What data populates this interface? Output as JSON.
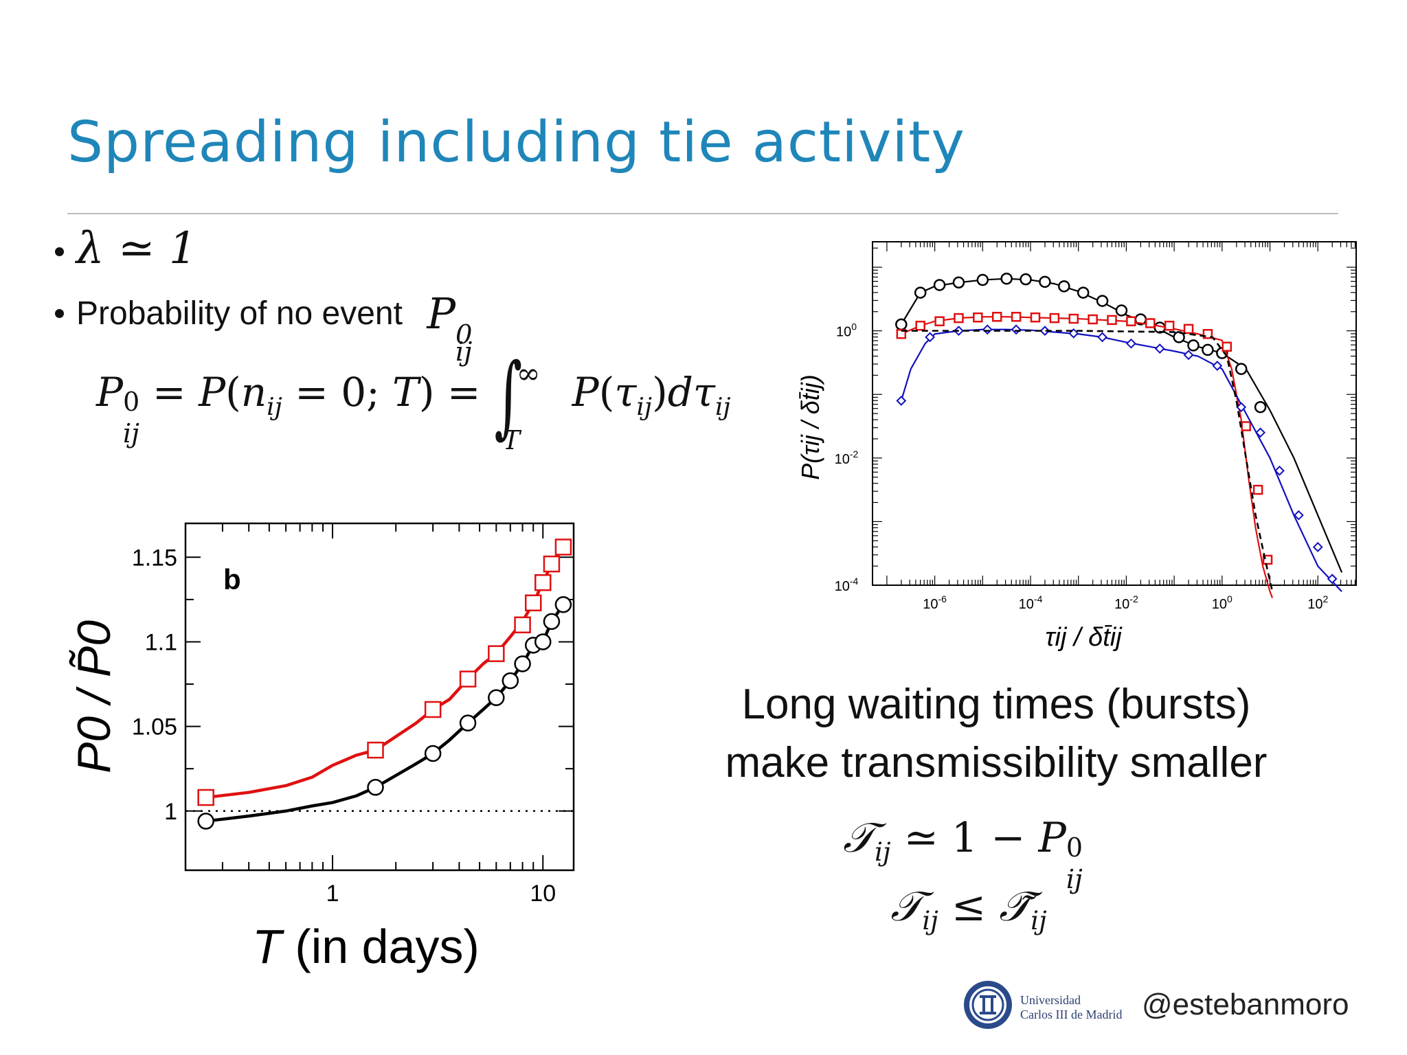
{
  "slide": {
    "title": "Spreading including tie activity",
    "bullet1": "λ ≃ 1",
    "bullet2_text": "Probability of no event",
    "caption_line1": "Long waiting times (bursts)",
    "caption_line2": "make transmissibility smaller",
    "footer": {
      "university_line1": "Universidad",
      "university_line2": "Carlos III de Madrid",
      "handle": "@estebanmoro"
    },
    "colors": {
      "title": "#1f86b9",
      "red_series": "#e01010",
      "blue_series": "#1010c0"
    }
  },
  "chart_data": [
    {
      "type": "line",
      "panel_label": "b",
      "xlabel": "T (in days)",
      "ylabel": "P0 / P̃0",
      "xscale": "log",
      "xlim": [
        0.2,
        14
      ],
      "ylim": [
        0.965,
        1.17
      ],
      "xticks": [
        1,
        10
      ],
      "xtick_labels": [
        "1",
        "10"
      ],
      "yticks": [
        1,
        1.05,
        1.1,
        1.15
      ],
      "ytick_labels": [
        "1",
        "1.05",
        "1.1",
        "1.15"
      ],
      "reference_line": {
        "y": 1,
        "style": "dotted"
      },
      "series": [
        {
          "color": "#e01010",
          "marker": "square",
          "line_x": [
            0.25,
            0.4,
            0.6,
            0.8,
            1.0,
            1.3,
            1.6,
            2.0,
            2.5,
            3.0,
            3.6,
            4.4,
            5.2,
            6.0,
            7.0,
            8.0,
            9.0,
            10.0,
            11.0,
            12.5
          ],
          "line_y": [
            1.008,
            1.011,
            1.015,
            1.02,
            1.027,
            1.033,
            1.036,
            1.044,
            1.052,
            1.06,
            1.066,
            1.078,
            1.087,
            1.093,
            1.103,
            1.112,
            1.123,
            1.135,
            1.146,
            1.156
          ],
          "marker_x": [
            0.25,
            1.6,
            3.0,
            4.4,
            6.0,
            8.0,
            9.0,
            10.0,
            11.0,
            12.5
          ],
          "marker_y": [
            1.008,
            1.036,
            1.06,
            1.078,
            1.093,
            1.11,
            1.123,
            1.135,
            1.146,
            1.156
          ]
        },
        {
          "color": "#000000",
          "marker": "circle",
          "line_x": [
            0.25,
            0.4,
            0.6,
            0.8,
            1.0,
            1.3,
            1.6,
            2.0,
            2.5,
            3.0,
            3.6,
            4.4,
            5.2,
            6.0,
            7.0,
            8.0,
            9.0,
            10.0,
            11.0,
            12.5
          ],
          "line_y": [
            0.994,
            0.997,
            1.0,
            1.003,
            1.005,
            1.009,
            1.014,
            1.021,
            1.028,
            1.034,
            1.042,
            1.052,
            1.06,
            1.067,
            1.077,
            1.087,
            1.098,
            1.1,
            1.112,
            1.122
          ],
          "marker_x": [
            0.25,
            1.6,
            3.0,
            4.4,
            6.0,
            7.0,
            8.0,
            9.0,
            10.0,
            11.0,
            12.5
          ],
          "marker_y": [
            0.994,
            1.014,
            1.034,
            1.052,
            1.067,
            1.077,
            1.087,
            1.098,
            1.1,
            1.112,
            1.122
          ]
        }
      ]
    },
    {
      "type": "line",
      "xlabel": "τij / δt̄ij",
      "ylabel": "P(τij / δt̄ij)",
      "xscale": "log",
      "yscale": "log",
      "xlim_log10": [
        -7.3,
        2.8
      ],
      "ylim_log10": [
        -4,
        1.4
      ],
      "xtick_labels": [
        "10-6",
        "10-4",
        "10-2",
        "100",
        "102"
      ],
      "ytick_labels": [
        "10-4",
        "10-2",
        "100"
      ],
      "series": [
        {
          "color": "#000000",
          "marker": "circle",
          "log10_x": [
            -6.7,
            -6.3,
            -6.0,
            -5.5,
            -5.0,
            -4.5,
            -4.0,
            -3.5,
            -3.0,
            -2.5,
            -2.0,
            -1.5,
            -1.0,
            -0.5,
            0.0,
            0.5,
            1.0,
            1.5,
            2.0,
            2.5
          ],
          "log10_y": [
            0.1,
            0.6,
            0.7,
            0.76,
            0.8,
            0.82,
            0.8,
            0.74,
            0.62,
            0.45,
            0.25,
            0.1,
            -0.1,
            -0.25,
            -0.35,
            -0.6,
            -1.25,
            -2.0,
            -2.9,
            -3.8
          ],
          "marker_log10_x": [
            -6.7,
            -6.3,
            -5.9,
            -5.5,
            -5.0,
            -4.5,
            -4.1,
            -3.7,
            -3.3,
            -2.9,
            -2.5,
            -2.1,
            -1.7,
            -1.3,
            -0.9,
            -0.6,
            -0.3,
            0.0,
            0.4,
            0.8
          ],
          "marker_log10_y": [
            0.1,
            0.6,
            0.72,
            0.76,
            0.8,
            0.82,
            0.81,
            0.77,
            0.7,
            0.6,
            0.47,
            0.32,
            0.18,
            0.05,
            -0.1,
            -0.23,
            -0.3,
            -0.35,
            -0.6,
            -1.2
          ]
        },
        {
          "color": "#e01010",
          "marker": "square",
          "log10_x": [
            -6.7,
            -6.3,
            -6.0,
            -5.5,
            -5.0,
            -4.5,
            -4.0,
            -3.5,
            -3.0,
            -2.5,
            -2.0,
            -1.5,
            -1.0,
            -0.5,
            0.0,
            0.2,
            0.4,
            0.55,
            0.7,
            0.85,
            1.0,
            1.05
          ],
          "log10_y": [
            -0.05,
            0.08,
            0.15,
            0.2,
            0.22,
            0.22,
            0.21,
            0.2,
            0.19,
            0.17,
            0.15,
            0.1,
            0.03,
            -0.05,
            -0.15,
            -0.6,
            -1.4,
            -2.3,
            -3.1,
            -3.7,
            -4.1,
            -4.2
          ],
          "marker_log10_x": [
            -6.7,
            -6.3,
            -5.9,
            -5.5,
            -5.1,
            -4.7,
            -4.3,
            -3.9,
            -3.5,
            -3.1,
            -2.7,
            -2.3,
            -1.9,
            -1.5,
            -1.1,
            -0.7,
            -0.3,
            0.1,
            0.5,
            0.75,
            0.95
          ],
          "marker_log10_y": [
            -0.05,
            0.08,
            0.15,
            0.2,
            0.21,
            0.22,
            0.22,
            0.21,
            0.2,
            0.19,
            0.18,
            0.17,
            0.15,
            0.12,
            0.08,
            0.03,
            -0.05,
            -0.25,
            -1.5,
            -2.5,
            -3.6
          ]
        },
        {
          "color": "#1010c0",
          "marker": "diamond",
          "log10_x": [
            -6.7,
            -6.5,
            -6.2,
            -6.0,
            -5.5,
            -5.0,
            -4.5,
            -4.0,
            -3.5,
            -3.0,
            -2.5,
            -2.0,
            -1.5,
            -1.0,
            -0.5,
            0.0,
            0.5,
            1.0,
            1.5,
            2.0,
            2.5
          ],
          "log10_y": [
            -1.1,
            -0.6,
            -0.2,
            -0.05,
            0.0,
            0.02,
            0.02,
            0.01,
            -0.02,
            -0.05,
            -0.1,
            -0.18,
            -0.25,
            -0.32,
            -0.4,
            -0.6,
            -1.3,
            -2.0,
            -2.9,
            -3.7,
            -4.1
          ],
          "marker_log10_x": [
            -6.7,
            -6.1,
            -5.5,
            -4.9,
            -4.3,
            -3.7,
            -3.1,
            -2.5,
            -1.9,
            -1.3,
            -0.7,
            -0.1,
            0.4,
            0.8,
            1.2,
            1.6,
            2.0,
            2.3
          ],
          "marker_log10_y": [
            -1.1,
            -0.1,
            0.0,
            0.02,
            0.02,
            0.0,
            -0.04,
            -0.1,
            -0.2,
            -0.28,
            -0.38,
            -0.55,
            -1.2,
            -1.6,
            -2.2,
            -2.9,
            -3.4,
            -3.9
          ]
        },
        {
          "color": "#000000",
          "style": "dashed",
          "log10_x": [
            -6.7,
            -5.0,
            -3.0,
            -1.0,
            -0.2,
            0.1,
            0.3,
            0.5,
            0.7,
            0.9,
            1.05
          ],
          "log10_y": [
            0.0,
            0.0,
            0.0,
            -0.02,
            -0.1,
            -0.4,
            -1.1,
            -2.0,
            -2.9,
            -3.6,
            -4.1
          ]
        }
      ]
    }
  ]
}
